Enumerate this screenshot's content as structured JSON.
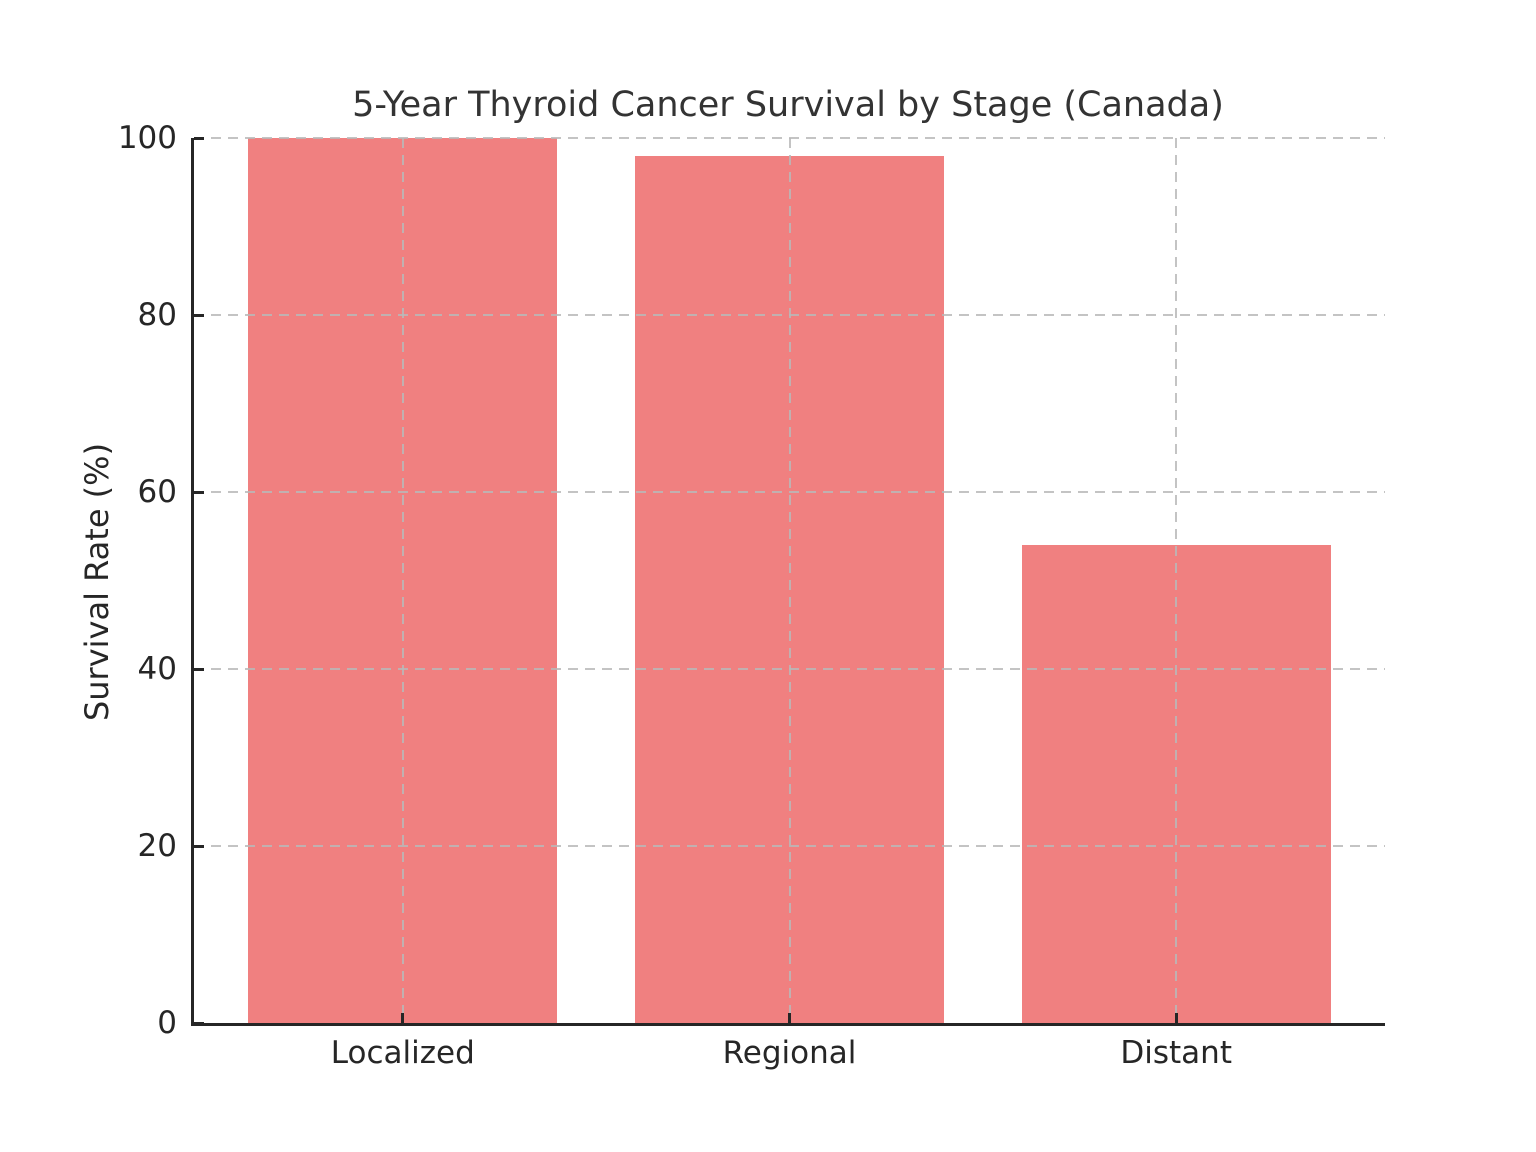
{
  "chart_data": {
    "type": "bar",
    "title": "5-Year Thyroid Cancer Survival by Stage (Canada)",
    "xlabel": "",
    "ylabel": "Survival Rate (%)",
    "categories": [
      "Localized",
      "Regional",
      "Distant"
    ],
    "values": [
      100,
      98,
      54
    ],
    "ylim": [
      0,
      100
    ],
    "yticks": [
      0,
      20,
      40,
      60,
      80,
      100
    ],
    "bar_color": "#F08080",
    "grid": true,
    "grid_linestyle": "dashed",
    "grid_color": "#c9c9c9",
    "axis_color": "#262626",
    "legend_position": "none",
    "background_color": "#ffffff"
  }
}
